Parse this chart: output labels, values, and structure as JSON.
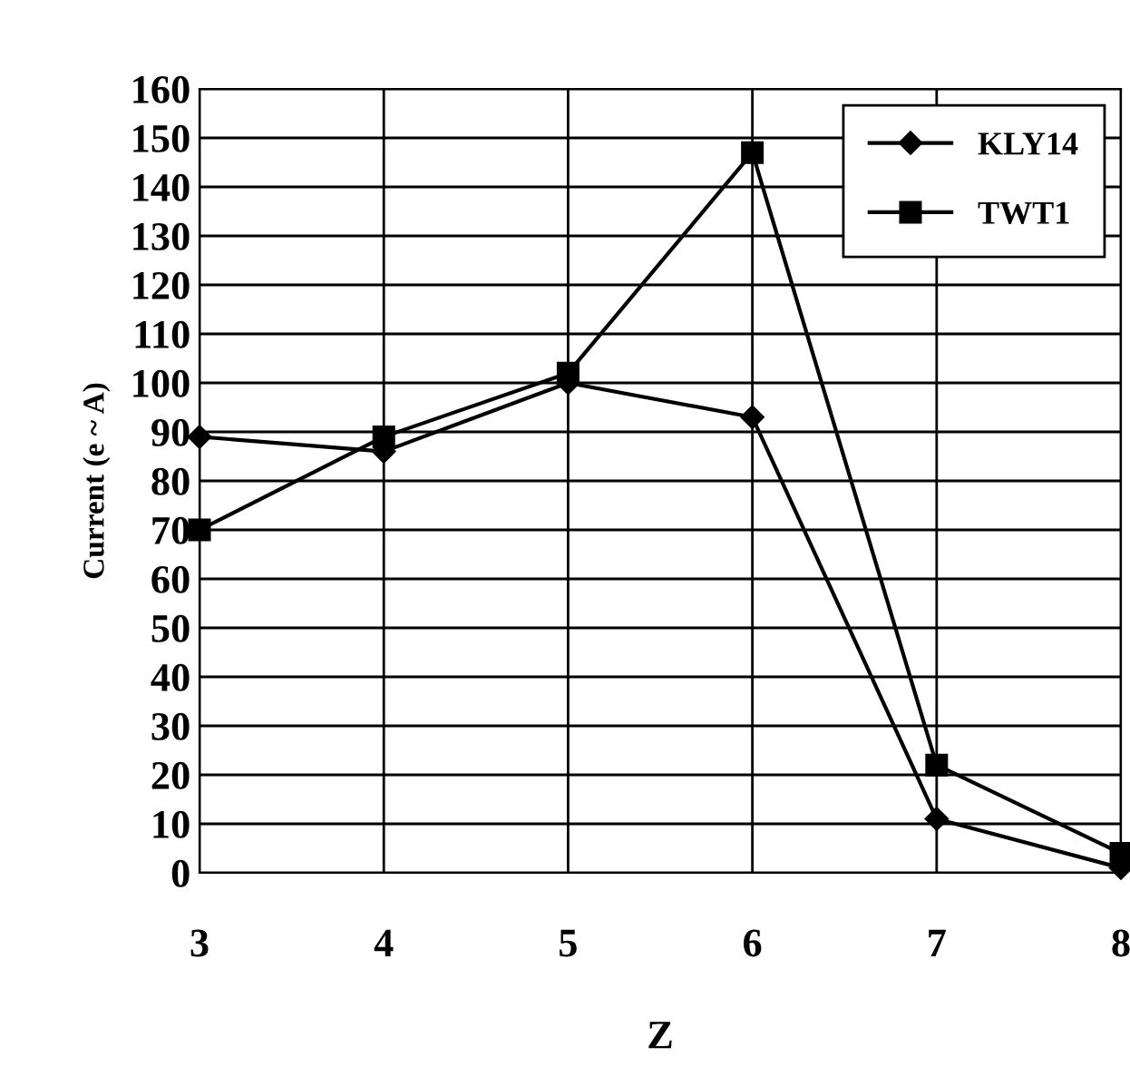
{
  "chart_data": {
    "type": "line",
    "xlabel": "Z",
    "ylabel": "Current (e ~ A)",
    "x": [
      3,
      4,
      5,
      6,
      7,
      8
    ],
    "series": [
      {
        "name": "KLY14",
        "color": "#000000",
        "marker": "diamond",
        "values": [
          89,
          86,
          100,
          93,
          11,
          1
        ]
      },
      {
        "name": "TWT1",
        "color": "#000000",
        "marker": "square",
        "values": [
          70,
          89,
          102,
          147,
          22,
          4
        ]
      }
    ],
    "xlim": [
      3,
      8
    ],
    "xticks": [
      3,
      4,
      5,
      6,
      7,
      8
    ],
    "ylim": [
      0,
      160
    ],
    "yticks": [
      0,
      10,
      20,
      30,
      40,
      50,
      60,
      70,
      80,
      90,
      100,
      110,
      120,
      130,
      140,
      150,
      160
    ],
    "grid": true,
    "legend": "top right",
    "line_style": "solid"
  }
}
